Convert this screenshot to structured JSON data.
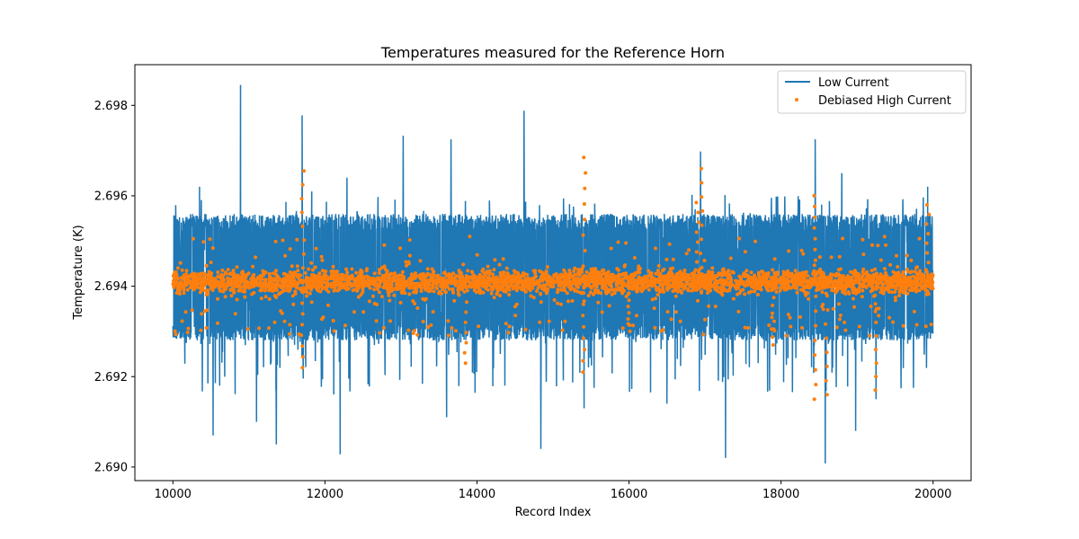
{
  "chart_data": {
    "type": "line",
    "title": "Temperatures measured for the Reference Horn",
    "xlabel": "Record Index",
    "ylabel": "Temperature (K)",
    "xlim": [
      9500,
      20500
    ],
    "ylim": [
      2.6897,
      2.6989
    ],
    "xticks": [
      10000,
      12000,
      14000,
      16000,
      18000,
      20000
    ],
    "xtick_labels": [
      "10000",
      "12000",
      "14000",
      "16000",
      "18000",
      "20000"
    ],
    "yticks": [
      2.69,
      2.692,
      2.694,
      2.696,
      2.698
    ],
    "ytick_labels": [
      "2.690",
      "2.692",
      "2.694",
      "2.696",
      "2.698"
    ],
    "grid": false,
    "legend_position": "top-right",
    "colors": {
      "low_current": "#1f77b4",
      "debiased_high_current": "#ff7f0e",
      "axes": "#000000",
      "background": "#ffffff"
    },
    "series": [
      {
        "name": "Low Current",
        "style": "line",
        "x_range": [
          10000,
          20000
        ],
        "n_points": 10000,
        "upper_envelope_approx": 2.6956,
        "lower_envelope_approx": 2.6928,
        "mean_approx": 2.6941,
        "spikes": [
          {
            "x": 10890,
            "y": 2.69845
          },
          {
            "x": 11700,
            "y": 2.69778
          },
          {
            "x": 14620,
            "y": 2.69788
          },
          {
            "x": 13030,
            "y": 2.69733
          },
          {
            "x": 13660,
            "y": 2.69725
          },
          {
            "x": 18450,
            "y": 2.69725
          },
          {
            "x": 15410,
            "y": 2.69685
          },
          {
            "x": 16940,
            "y": 2.69698
          },
          {
            "x": 12290,
            "y": 2.6964
          },
          {
            "x": 10350,
            "y": 2.6962
          },
          {
            "x": 18800,
            "y": 2.6965
          },
          {
            "x": 19930,
            "y": 2.6962
          },
          {
            "x": 12200,
            "y": 2.69028
          },
          {
            "x": 18580,
            "y": 2.69008
          },
          {
            "x": 17270,
            "y": 2.6902
          },
          {
            "x": 14840,
            "y": 2.6904
          },
          {
            "x": 11360,
            "y": 2.6905
          },
          {
            "x": 10530,
            "y": 2.6907
          },
          {
            "x": 11100,
            "y": 2.691
          },
          {
            "x": 13600,
            "y": 2.6911
          },
          {
            "x": 18980,
            "y": 2.6908
          },
          {
            "x": 15410,
            "y": 2.6913
          },
          {
            "x": 16500,
            "y": 2.6914
          },
          {
            "x": 19250,
            "y": 2.6915
          }
        ]
      },
      {
        "name": "Debiased High Current",
        "style": "scatter",
        "x_range": [
          10000,
          20000
        ],
        "n_points": 10000,
        "mean_approx": 2.6941,
        "spread_approx": 0.0002,
        "outliers": [
          {
            "x": 11710,
            "y": 2.69655
          },
          {
            "x": 15410,
            "y": 2.69685
          },
          {
            "x": 16950,
            "y": 2.6966
          },
          {
            "x": 16900,
            "y": 2.69585
          },
          {
            "x": 18440,
            "y": 2.696
          },
          {
            "x": 19930,
            "y": 2.6958
          },
          {
            "x": 11700,
            "y": 2.6922
          },
          {
            "x": 18450,
            "y": 2.6915
          },
          {
            "x": 18600,
            "y": 2.6916
          },
          {
            "x": 19250,
            "y": 2.6917
          },
          {
            "x": 15400,
            "y": 2.6921
          },
          {
            "x": 13850,
            "y": 2.6923
          },
          {
            "x": 16000,
            "y": 2.693
          },
          {
            "x": 17900,
            "y": 2.6927
          }
        ]
      }
    ]
  }
}
